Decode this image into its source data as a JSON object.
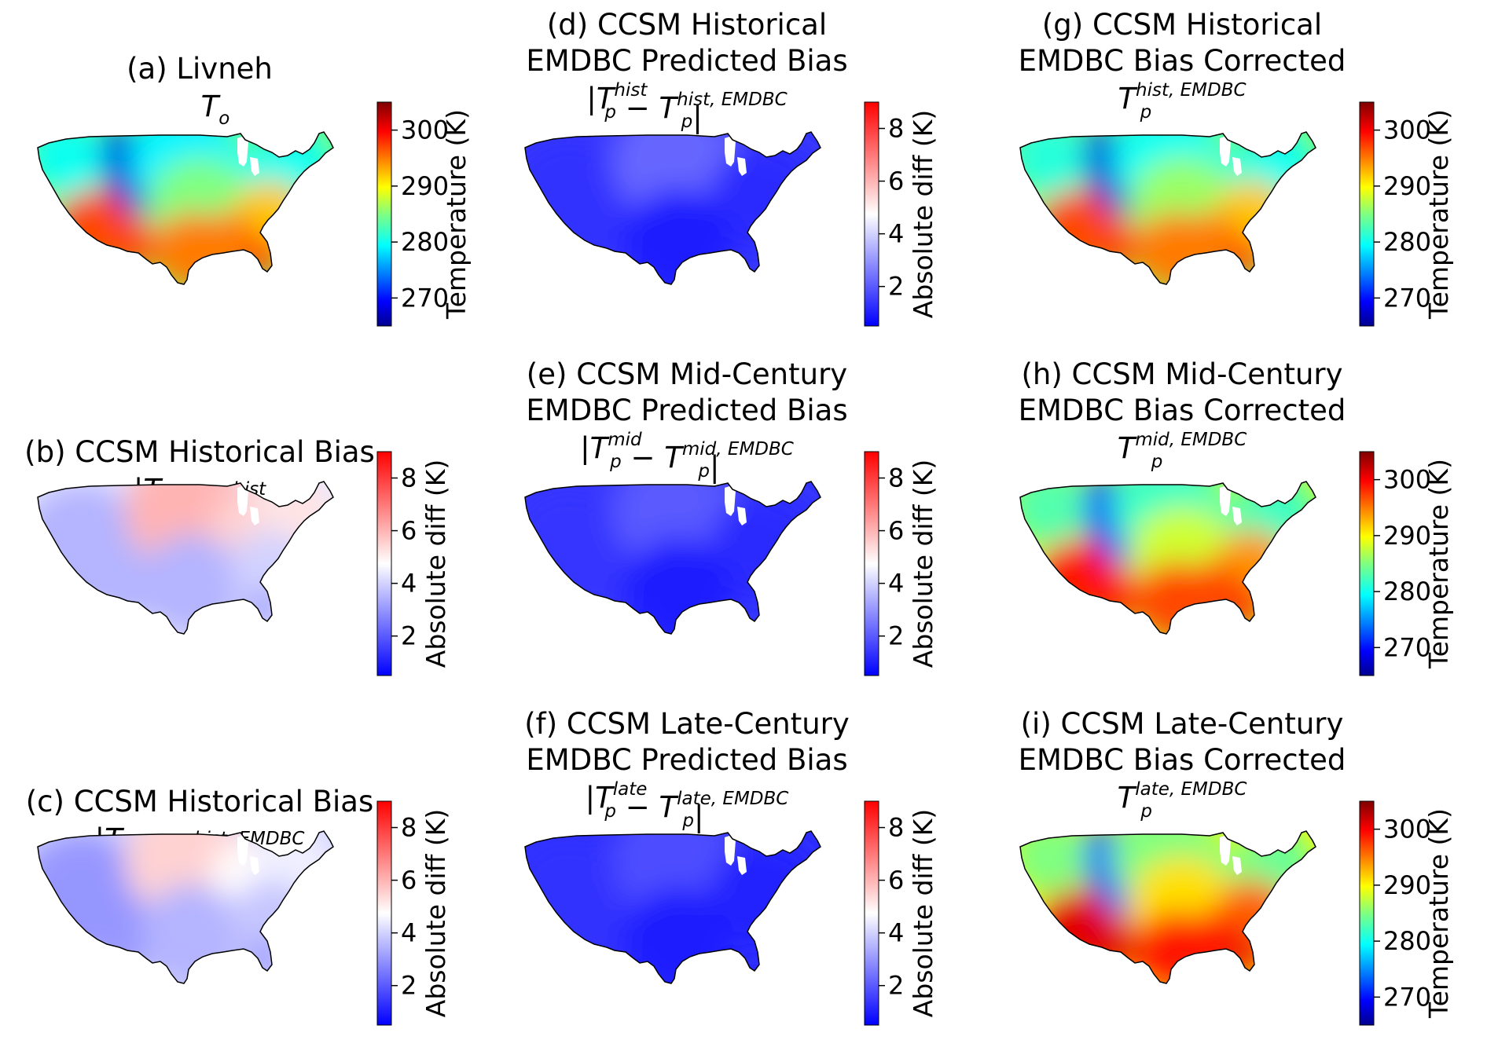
{
  "figure": {
    "panels": [
      {
        "id": "a",
        "title_lines": [
          "(a) Livneh"
        ],
        "formula": "To",
        "kind": "temp",
        "field": "livneh"
      },
      {
        "id": "b",
        "title_lines": [
          "(b) CCSM Historical Bias"
        ],
        "formula": "|To − Tp^hist|",
        "kind": "diff",
        "field": "bias_hist"
      },
      {
        "id": "c",
        "title_lines": [
          "(c) CCSM Historical Bias"
        ],
        "formula": "|To − Tp^hist,EMDBC|",
        "kind": "diff",
        "field": "bias_hist_emdbc"
      },
      {
        "id": "d",
        "title_lines": [
          "(d) CCSM Historical",
          "EMDBC Predicted Bias"
        ],
        "formula": "|Tp^hist − Tp^hist,EMDBC|",
        "kind": "diff",
        "field": "pred_bias"
      },
      {
        "id": "e",
        "title_lines": [
          "(e) CCSM Mid-Century",
          "EMDBC Predicted Bias"
        ],
        "formula": "|Tp^mid − Tp^mid,EMDBC|",
        "kind": "diff",
        "field": "pred_bias"
      },
      {
        "id": "f",
        "title_lines": [
          "(f) CCSM Late-Century",
          "EMDBC Predicted Bias"
        ],
        "formula": "|Tp^late − Tp^late,EMDBC|",
        "kind": "diff",
        "field": "pred_bias"
      },
      {
        "id": "g",
        "title_lines": [
          "(g) CCSM Historical",
          "EMDBC Bias Corrected"
        ],
        "formula": "Tp^hist,EMDBC",
        "kind": "temp",
        "field": "corrected_hist"
      },
      {
        "id": "h",
        "title_lines": [
          "(h) CCSM Mid-Century",
          "EMDBC Bias Corrected"
        ],
        "formula": "Tp^mid,EMDBC",
        "kind": "temp",
        "field": "corrected_mid"
      },
      {
        "id": "i",
        "title_lines": [
          "(i) CCSM Late-Century",
          "EMDBC Bias Corrected"
        ],
        "formula": "Tp^late,EMDBC",
        "kind": "temp",
        "field": "corrected_late"
      }
    ],
    "colorbars": {
      "temp": {
        "label": "Temperature (K)",
        "ticks": [
          "270",
          "280",
          "290",
          "300"
        ],
        "range": [
          265,
          305
        ],
        "colormap": "jet"
      },
      "diff": {
        "label": "Absolute diff (K)",
        "ticks": [
          "2",
          "4",
          "6",
          "8"
        ],
        "range": [
          0.5,
          9
        ],
        "colormap": "bwr"
      }
    }
  },
  "chart_data": [
    {
      "type": "heatmap",
      "title": "(a) Livneh  To",
      "colorbar_label": "Temperature (K)",
      "zlim": [
        265,
        305
      ],
      "colorbar_ticks": [
        270,
        280,
        290,
        300
      ],
      "colormap": "jet",
      "region": "contiguous United States",
      "regional_values_K": {
        "northern_rockies": 268,
        "northwest": 280,
        "north_central": 279,
        "northeast": 280,
        "great_lakes_region": 280,
        "central_plains": 285,
        "southwest_desert": 297,
        "southeast": 292,
        "gulf_coast_texas": 295,
        "florida_south": 299
      }
    },
    {
      "type": "heatmap",
      "title": "(b) CCSM Historical Bias  |To − Tp^hist|",
      "colorbar_label": "Absolute diff (K)",
      "zlim": [
        0.5,
        9
      ],
      "colorbar_ticks": [
        2,
        4,
        6,
        8
      ],
      "colormap": "bwr",
      "regional_values_K": {
        "west": 3.5,
        "northern_plains": 6.0,
        "great_lakes": 5.5,
        "northeast": 5.2,
        "south_central": 3.5,
        "southeast": 4.0,
        "florida": 3.0
      }
    },
    {
      "type": "heatmap",
      "title": "(c) CCSM Historical Bias  |To − Tp^hist,EMDBC|",
      "colorbar_label": "Absolute diff (K)",
      "zlim": [
        0.5,
        9
      ],
      "colorbar_ticks": [
        2,
        4,
        6,
        8
      ],
      "colormap": "bwr",
      "regional_values_K": {
        "west": 3.0,
        "northern_plains": 5.5,
        "great_lakes": 4.8,
        "northeast": 4.5,
        "south_central": 3.5,
        "southeast": 3.8,
        "florida": 3.0
      }
    },
    {
      "type": "heatmap",
      "title": "(d) CCSM Historical EMDBC Predicted Bias  |Tp^hist − Tp^hist,EMDBC|",
      "colorbar_label": "Absolute diff (K)",
      "zlim": [
        0.5,
        9
      ],
      "colorbar_ticks": [
        2,
        4,
        6,
        8
      ],
      "colormap": "bwr",
      "regional_values_K": {
        "west": 1.3,
        "northern_plains": 2.2,
        "east": 1.2,
        "south": 1.0
      }
    },
    {
      "type": "heatmap",
      "title": "(e) CCSM Mid-Century EMDBC Predicted Bias  |Tp^mid − Tp^mid,EMDBC|",
      "colorbar_label": "Absolute diff (K)",
      "zlim": [
        0.5,
        9
      ],
      "colorbar_ticks": [
        2,
        4,
        6,
        8
      ],
      "colormap": "bwr",
      "regional_values_K": {
        "west": 1.4,
        "northern_plains": 2.0,
        "east": 1.2,
        "south": 1.0
      }
    },
    {
      "type": "heatmap",
      "title": "(f) CCSM Late-Century EMDBC Predicted Bias  |Tp^late − Tp^late,EMDBC|",
      "colorbar_label": "Absolute diff (K)",
      "zlim": [
        0.5,
        9
      ],
      "colorbar_ticks": [
        2,
        4,
        6,
        8
      ],
      "colormap": "bwr",
      "regional_values_K": {
        "west": 1.3,
        "northern_plains": 1.8,
        "east": 1.1,
        "south": 1.0
      }
    },
    {
      "type": "heatmap",
      "title": "(g) CCSM Historical EMDBC Bias Corrected  Tp^hist,EMDBC",
      "colorbar_label": "Temperature (K)",
      "zlim": [
        265,
        305
      ],
      "colorbar_ticks": [
        270,
        280,
        290,
        300
      ],
      "colormap": "jet",
      "regional_values_K": {
        "northern_rockies": 268,
        "northwest": 281,
        "north_central": 280,
        "northeast": 280,
        "great_lakes_region": 281,
        "central_plains": 286,
        "southwest_desert": 297,
        "southeast": 292,
        "gulf_coast_texas": 295,
        "florida_south": 299
      }
    },
    {
      "type": "heatmap",
      "title": "(h) CCSM Mid-Century EMDBC Bias Corrected  Tp^mid,EMDBC",
      "colorbar_label": "Temperature (K)",
      "zlim": [
        265,
        305
      ],
      "colorbar_ticks": [
        270,
        280,
        290,
        300
      ],
      "colormap": "jet",
      "regional_values_K": {
        "northern_rockies": 271,
        "northwest": 283,
        "north_central": 282,
        "northeast": 282,
        "great_lakes_region": 283,
        "central_plains": 288,
        "southwest_desert": 299,
        "southeast": 294,
        "gulf_coast_texas": 297,
        "florida_south": 300
      }
    },
    {
      "type": "heatmap",
      "title": "(i) CCSM Late-Century EMDBC Bias Corrected  Tp^late,EMDBC",
      "colorbar_label": "Temperature (K)",
      "zlim": [
        265,
        305
      ],
      "colorbar_ticks": [
        270,
        280,
        290,
        300
      ],
      "colormap": "jet",
      "regional_values_K": {
        "northern_rockies": 273,
        "northwest": 285,
        "north_central": 285,
        "northeast": 284,
        "great_lakes_region": 285,
        "central_plains": 291,
        "southwest_desert": 301,
        "southeast": 296,
        "gulf_coast_texas": 299,
        "florida_south": 301
      }
    }
  ]
}
